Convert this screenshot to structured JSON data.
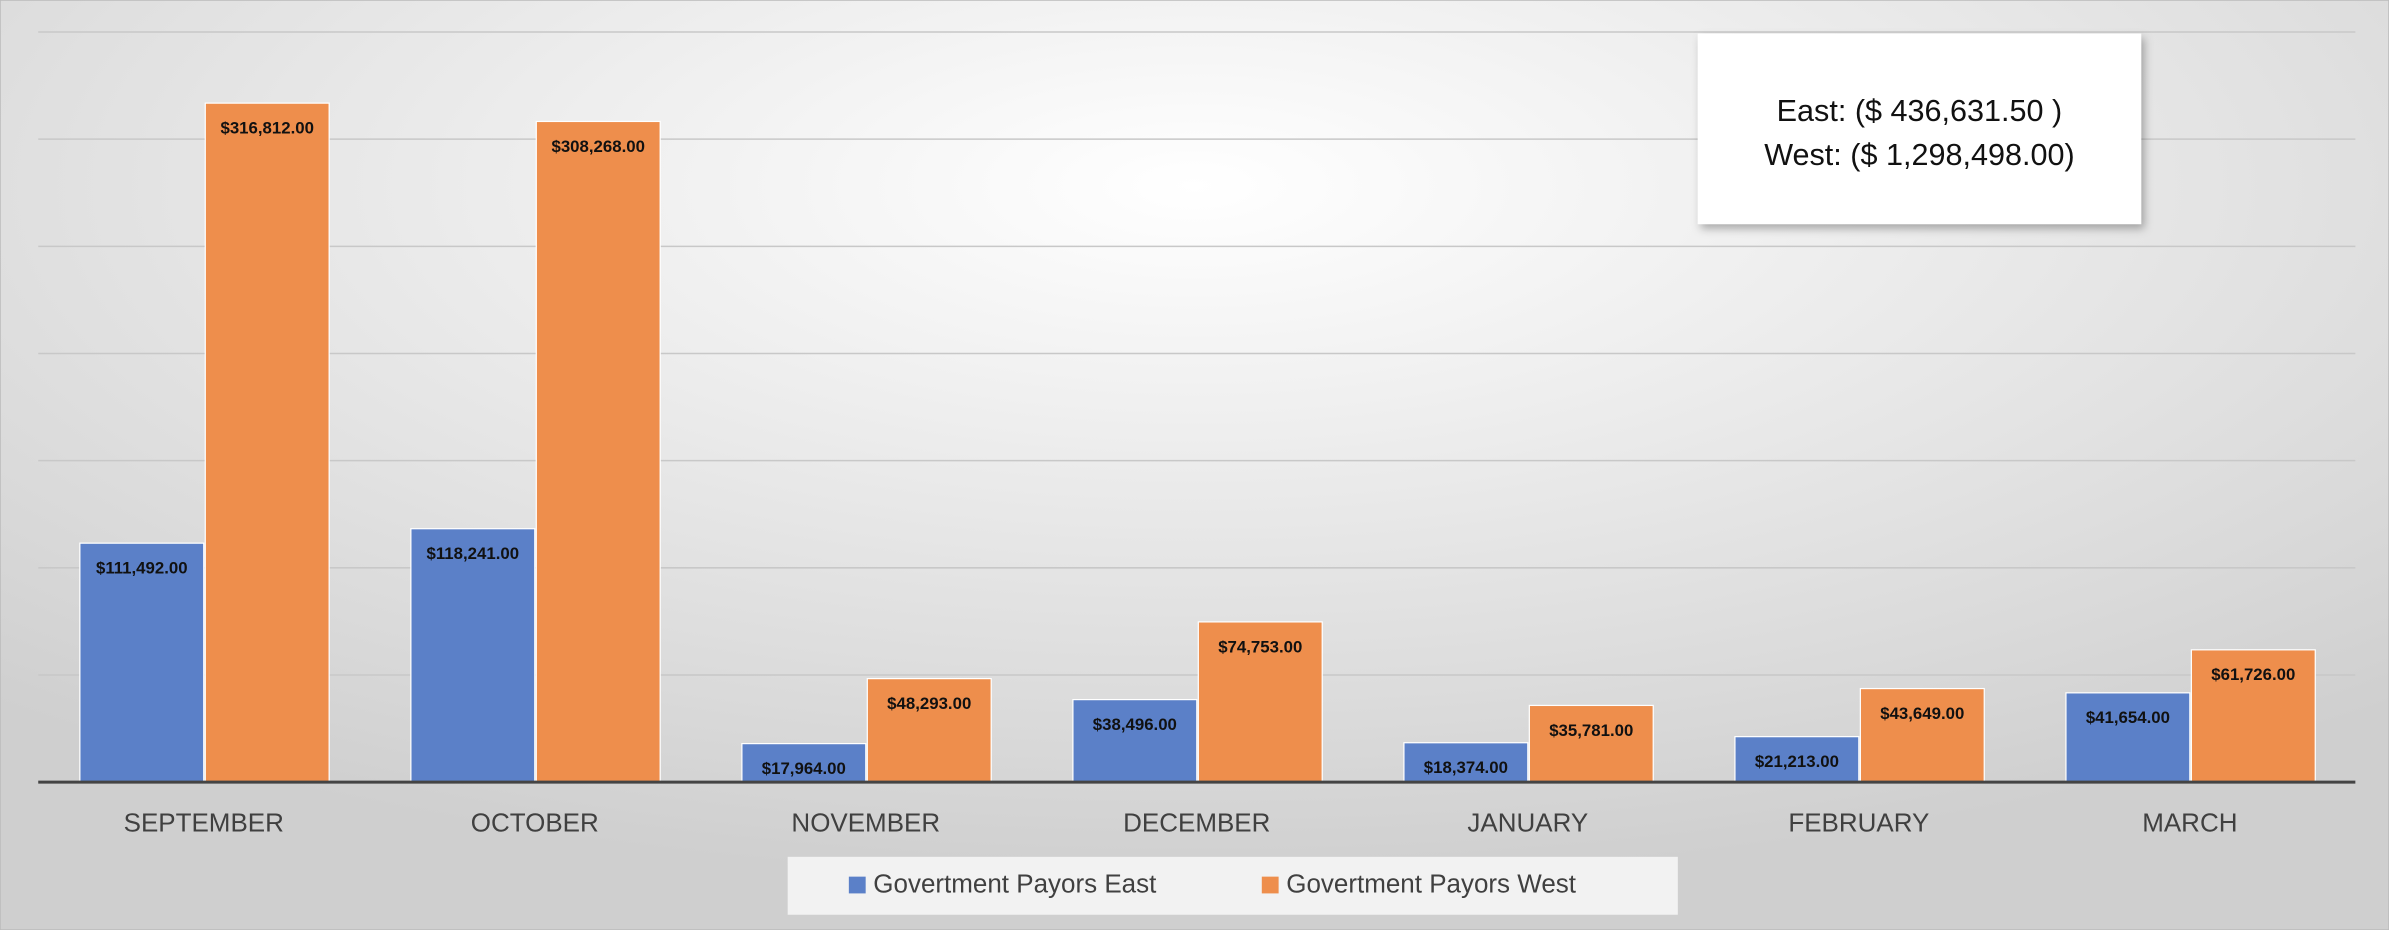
{
  "chart_data": {
    "type": "bar",
    "categories": [
      "SEPTEMBER",
      "OCTOBER",
      "NOVEMBER",
      "DECEMBER",
      "JANUARY",
      "FEBRUARY",
      "MARCH"
    ],
    "series": [
      {
        "name": "Govertment Payors  East",
        "color": "#5b80c8",
        "values": [
          111492,
          118241,
          17964,
          38496,
          18374,
          21213,
          41654
        ],
        "value_labels": [
          "$111,492.00",
          "$118,241.00",
          "$17,964.00",
          "$38,496.00",
          "$18,374.00",
          "$21,213.00",
          "$41,654.00"
        ]
      },
      {
        "name": "Govertment Payors  West",
        "color": "#ee8e4c",
        "values": [
          316812,
          308268,
          48293,
          74753,
          35781,
          43649,
          61726
        ],
        "value_labels": [
          "$316,812.00",
          "$308,268.00",
          "$48,293.00",
          "$74,753.00",
          "$35,781.00",
          "$43,649.00",
          "$61,726.00"
        ]
      }
    ],
    "annotation": [
      "East:   ($ 436,631.50 )",
      "West: ($ 1,298,498.00)"
    ],
    "ylim": [
      0,
      350000
    ],
    "gridlines": [
      50000,
      100000,
      150000,
      200000,
      250000,
      300000,
      350000
    ],
    "grid": true,
    "legend": "bottom"
  }
}
